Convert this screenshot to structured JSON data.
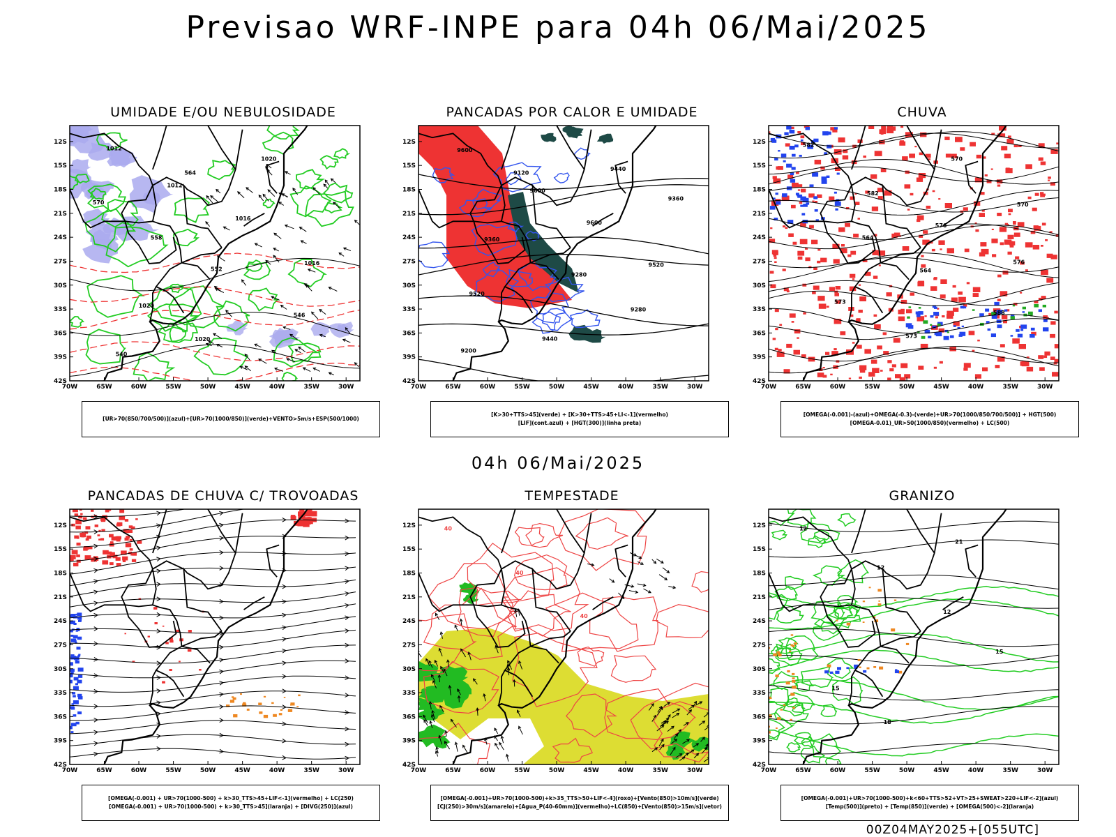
{
  "page": {
    "title": "Previsao WRF-INPE  para 04h 06/Mai/2025",
    "mid_time": "04h 06/Mai/2025",
    "run_stamp": "00Z04MAY2025+[055UTC]"
  },
  "axes": {
    "lat_labels": [
      "12S",
      "15S",
      "18S",
      "21S",
      "24S",
      "27S",
      "30S",
      "33S",
      "36S",
      "39S",
      "42S"
    ],
    "lon_labels": [
      "70W",
      "65W",
      "60W",
      "55W",
      "50W",
      "45W",
      "40W",
      "35W",
      "30W"
    ]
  },
  "panels": [
    {
      "id": "umidade",
      "title": "UMIDADE E/OU NEBULOSIDADE",
      "legend": [
        "[UR>70(850/700/500)](azul)+[UR>70(1000/850)](verde)+VENTO>5m/s+ESP(500/1000)"
      ],
      "contour_labels": [
        "1012",
        "1012",
        "1016",
        "1016",
        "1020",
        "1020",
        "1020",
        "570",
        "558",
        "552",
        "546",
        "540",
        "564"
      ],
      "colors": {
        "fill": "#aaaaee",
        "contour": "#22cc22",
        "thickness": "#ee3333"
      }
    },
    {
      "id": "pancadas-calor",
      "title": "PANCADAS POR CALOR E UMIDADE",
      "legend": [
        "[K>30+TTS>45](verde) + [K>30+TTS>45+LI<-1](vermelho)",
        "[LIF](cont.azul) + [HGT(300)](linha preta)"
      ],
      "contour_labels": [
        "9600",
        "9600",
        "9600",
        "9520",
        "9520",
        "9440",
        "9440",
        "9360",
        "9360",
        "9280",
        "9280",
        "9200",
        "9120"
      ],
      "colors": {
        "fill_red": "#ee3333",
        "fill_green": "#1e4a46",
        "contour": "#3355ee"
      }
    },
    {
      "id": "chuva",
      "title": "CHUVA",
      "legend": [
        "[OMEGA(-0.001)-(azul)+OMEGA(-0.3)-(verde)+UR>70(1000/850/700/500)] + HGT(500)",
        "[OMEGA-0.01)_UR>50(1000/850)(vermelho) + LC(500)"
      ],
      "contour_labels": [
        "582",
        "582",
        "576",
        "576",
        "573",
        "573",
        "570",
        "570",
        "564",
        "564",
        "588"
      ],
      "colors": {
        "fill_red": "#ee3333",
        "fill_blue": "#2244ee",
        "fill_green": "#22aa22"
      }
    },
    {
      "id": "trovoadas",
      "title": "PANCADAS DE CHUVA C/ TROVOADAS",
      "legend": [
        "[OMEGA(-0.001) + UR>70(1000-500) + k>30_TTS>45+LIF<-1](vermelho) + LC(250)",
        "[OMEGA(-0.001) + UR>70(1000-500) + k>30_TTS>45](laranja) + [DIVG(250)](azul)"
      ],
      "contour_labels": [],
      "colors": {
        "fill_red": "#ee3333",
        "fill_orange": "#ee8822",
        "fill_blue": "#2244ee"
      }
    },
    {
      "id": "tempestade",
      "title": "TEMPESTADE",
      "legend": [
        "[OMEGA(-0.001)+UR>70(1000-500)+k>35_TTS>50+LIF<-4](roxo)+[Vento(850)>10m/s](verde)",
        "[CJ(250)>30m/s](amarelo)+[Agua_P(40-60mm)](vermelho)+LC(850)+[Vento(850)>15m/s](vetor)"
      ],
      "contour_labels": [
        "40",
        "40",
        "40"
      ],
      "colors": {
        "fill_yellow": "#dddd33",
        "fill_green": "#22bb22",
        "contour": "#ee4444"
      }
    },
    {
      "id": "granizo",
      "title": "GRANIZO",
      "legend": [
        "[OMEGA(-0.001)+UR>70(1000-500)+k<60+TTS>52+VT>25+SWEAT>220+LIF<-2](azul)",
        "[Temp(500)](preto) + [Temp(850)](verde) + [OMEGA(500)<-2](laranja)"
      ],
      "contour_labels": [
        "12",
        "12",
        "12",
        "15",
        "15",
        "18",
        "21"
      ],
      "colors": {
        "contour": "#22cc22",
        "fill_orange": "#ee8822",
        "fill_blue": "#2244ee"
      }
    }
  ]
}
